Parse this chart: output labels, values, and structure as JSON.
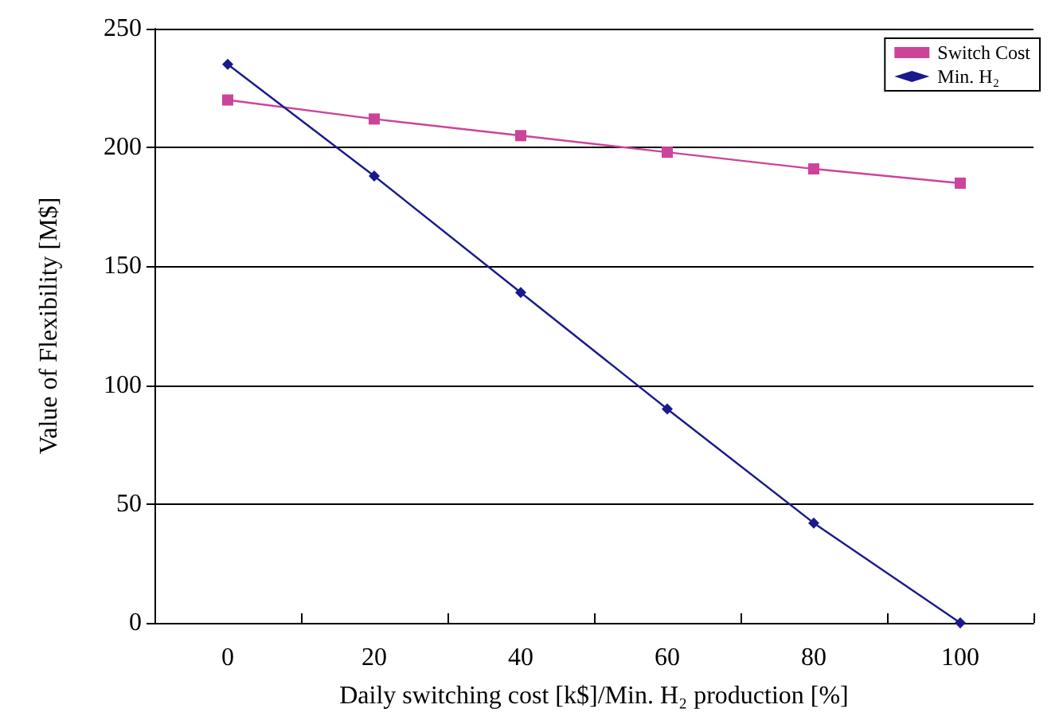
{
  "chart_data": {
    "type": "line",
    "xlabel": "Daily switching cost [k$]/Min. H₂ production [%]",
    "ylabel": "Value of Flexibility [M$]",
    "categories": [
      "0",
      "20",
      "40",
      "60",
      "80",
      "100"
    ],
    "series": [
      {
        "name": "Switch Cost",
        "color": "#cc4499",
        "marker": "square",
        "values": [
          220,
          212,
          205,
          198,
          191,
          185
        ]
      },
      {
        "name": "Min. H₂",
        "color": "#1a1a8c",
        "marker": "diamond",
        "values": [
          235,
          188,
          139,
          90,
          42,
          0
        ]
      }
    ],
    "ylim": [
      0,
      250
    ],
    "yticks": [
      0,
      50,
      100,
      150,
      200,
      250
    ],
    "grid": "y",
    "legend": "top right",
    "line_style": "solid"
  }
}
